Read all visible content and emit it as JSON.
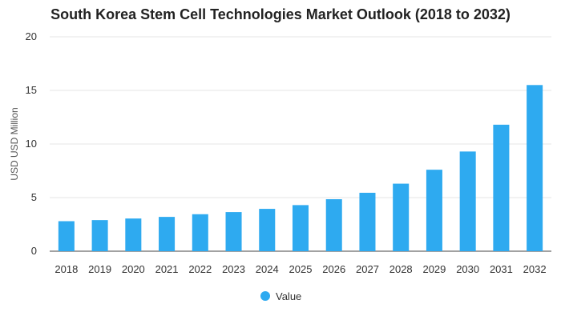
{
  "chart_data": {
    "type": "bar",
    "title": "South Korea Stem Cell Technologies Market Outlook (2018 to 2032)",
    "xlabel": "",
    "ylabel": "USD USD Million",
    "ylim": [
      0,
      20
    ],
    "yticks": [
      0,
      5,
      10,
      15,
      20
    ],
    "grid": true,
    "legend": "bottom-center",
    "categories": [
      "2018",
      "2019",
      "2020",
      "2021",
      "2022",
      "2023",
      "2024",
      "2025",
      "2026",
      "2027",
      "2028",
      "2029",
      "2030",
      "2031",
      "2032"
    ],
    "series": [
      {
        "name": "Value",
        "color": "#2eaaf0",
        "values": [
          2.8,
          2.9,
          3.05,
          3.2,
          3.45,
          3.65,
          3.95,
          4.3,
          4.85,
          5.45,
          6.3,
          7.6,
          9.3,
          11.8,
          15.5
        ]
      }
    ]
  }
}
